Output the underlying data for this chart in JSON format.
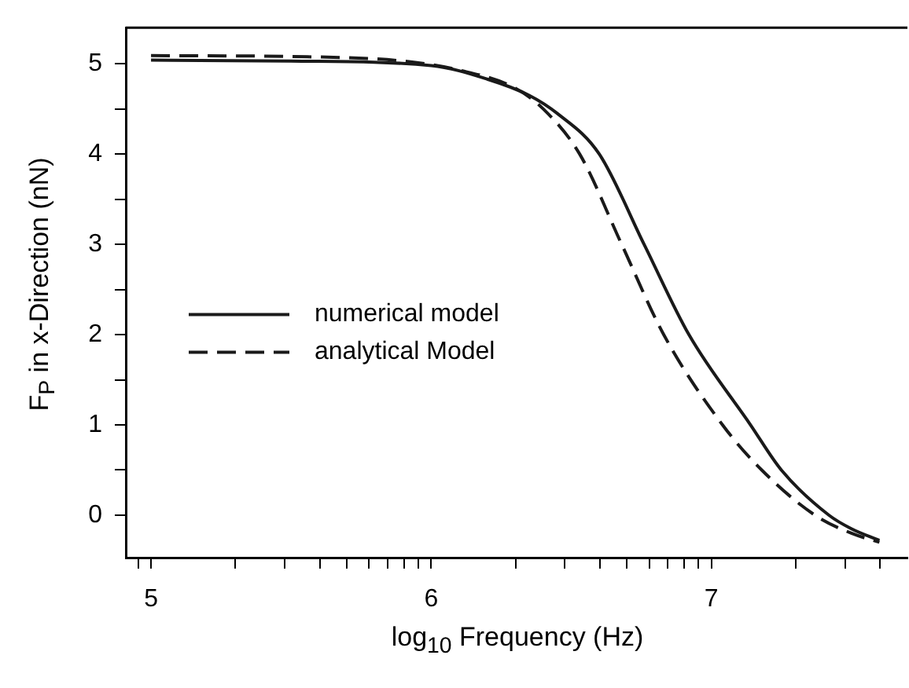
{
  "chart_data": {
    "type": "line",
    "xlabel": "log$_{10}$ Frequency (Hz)",
    "ylabel": "F$_{P}$ in x-Direction (nN)",
    "xlim": [
      4.91,
      7.7
    ],
    "ylim": [
      -0.47,
      5.4
    ],
    "xticks": [
      {
        "value": 4.954,
        "label": null
      },
      5,
      {
        "value": 5.301,
        "label": null
      },
      {
        "value": 5.477,
        "label": null
      },
      {
        "value": 5.602,
        "label": null
      },
      {
        "value": 5.699,
        "label": null
      },
      {
        "value": 5.778,
        "label": null
      },
      {
        "value": 5.845,
        "label": null
      },
      {
        "value": 5.903,
        "label": null
      },
      {
        "value": 5.954,
        "label": null
      },
      6,
      {
        "value": 6.301,
        "label": null
      },
      {
        "value": 6.477,
        "label": null
      },
      {
        "value": 6.602,
        "label": null
      },
      {
        "value": 6.699,
        "label": null
      },
      {
        "value": 6.778,
        "label": null
      },
      {
        "value": 6.845,
        "label": null
      },
      {
        "value": 6.903,
        "label": null
      },
      {
        "value": 6.954,
        "label": null
      },
      7,
      {
        "value": 7.301,
        "label": null
      },
      {
        "value": 7.477,
        "label": null
      },
      {
        "value": 7.602,
        "label": null
      }
    ],
    "yticks": [
      0,
      {
        "value": 0.5,
        "label": null
      },
      1,
      {
        "value": 1.5,
        "label": null
      },
      2,
      {
        "value": 2.5,
        "label": null
      },
      3,
      {
        "value": 3.5,
        "label": null
      },
      4,
      {
        "value": 4.5,
        "label": null
      },
      5
    ],
    "grid": false,
    "legend": "left",
    "marker": "none",
    "series": [
      {
        "name": "numerical model",
        "color": "#1a1a1a",
        "line_style": "solid",
        "x": [
          5,
          5.5,
          6,
          6.2,
          6.35,
          6.45,
          6.6,
          6.76,
          6.92,
          7.14,
          7.25,
          7.42,
          7.5,
          7.6
        ],
        "values": [
          5.04,
          5.03,
          4.98,
          4.83,
          4.65,
          4.45,
          4,
          3,
          2,
          1,
          0.5,
          0,
          -0.15,
          -0.28
        ]
      },
      {
        "name": "analytical Model",
        "color": "#1a1a1a",
        "line_style": "dashed",
        "x": [
          5,
          5.5,
          5.9,
          6.1,
          6.3,
          6.4,
          6.53,
          6.68,
          6.83,
          7.04,
          7.18,
          7.37,
          7.5,
          7.6
        ],
        "values": [
          5.09,
          5.08,
          5.03,
          4.93,
          4.73,
          4.5,
          4,
          3,
          2,
          1,
          0.5,
          0,
          -0.2,
          -0.3
        ]
      }
    ]
  }
}
